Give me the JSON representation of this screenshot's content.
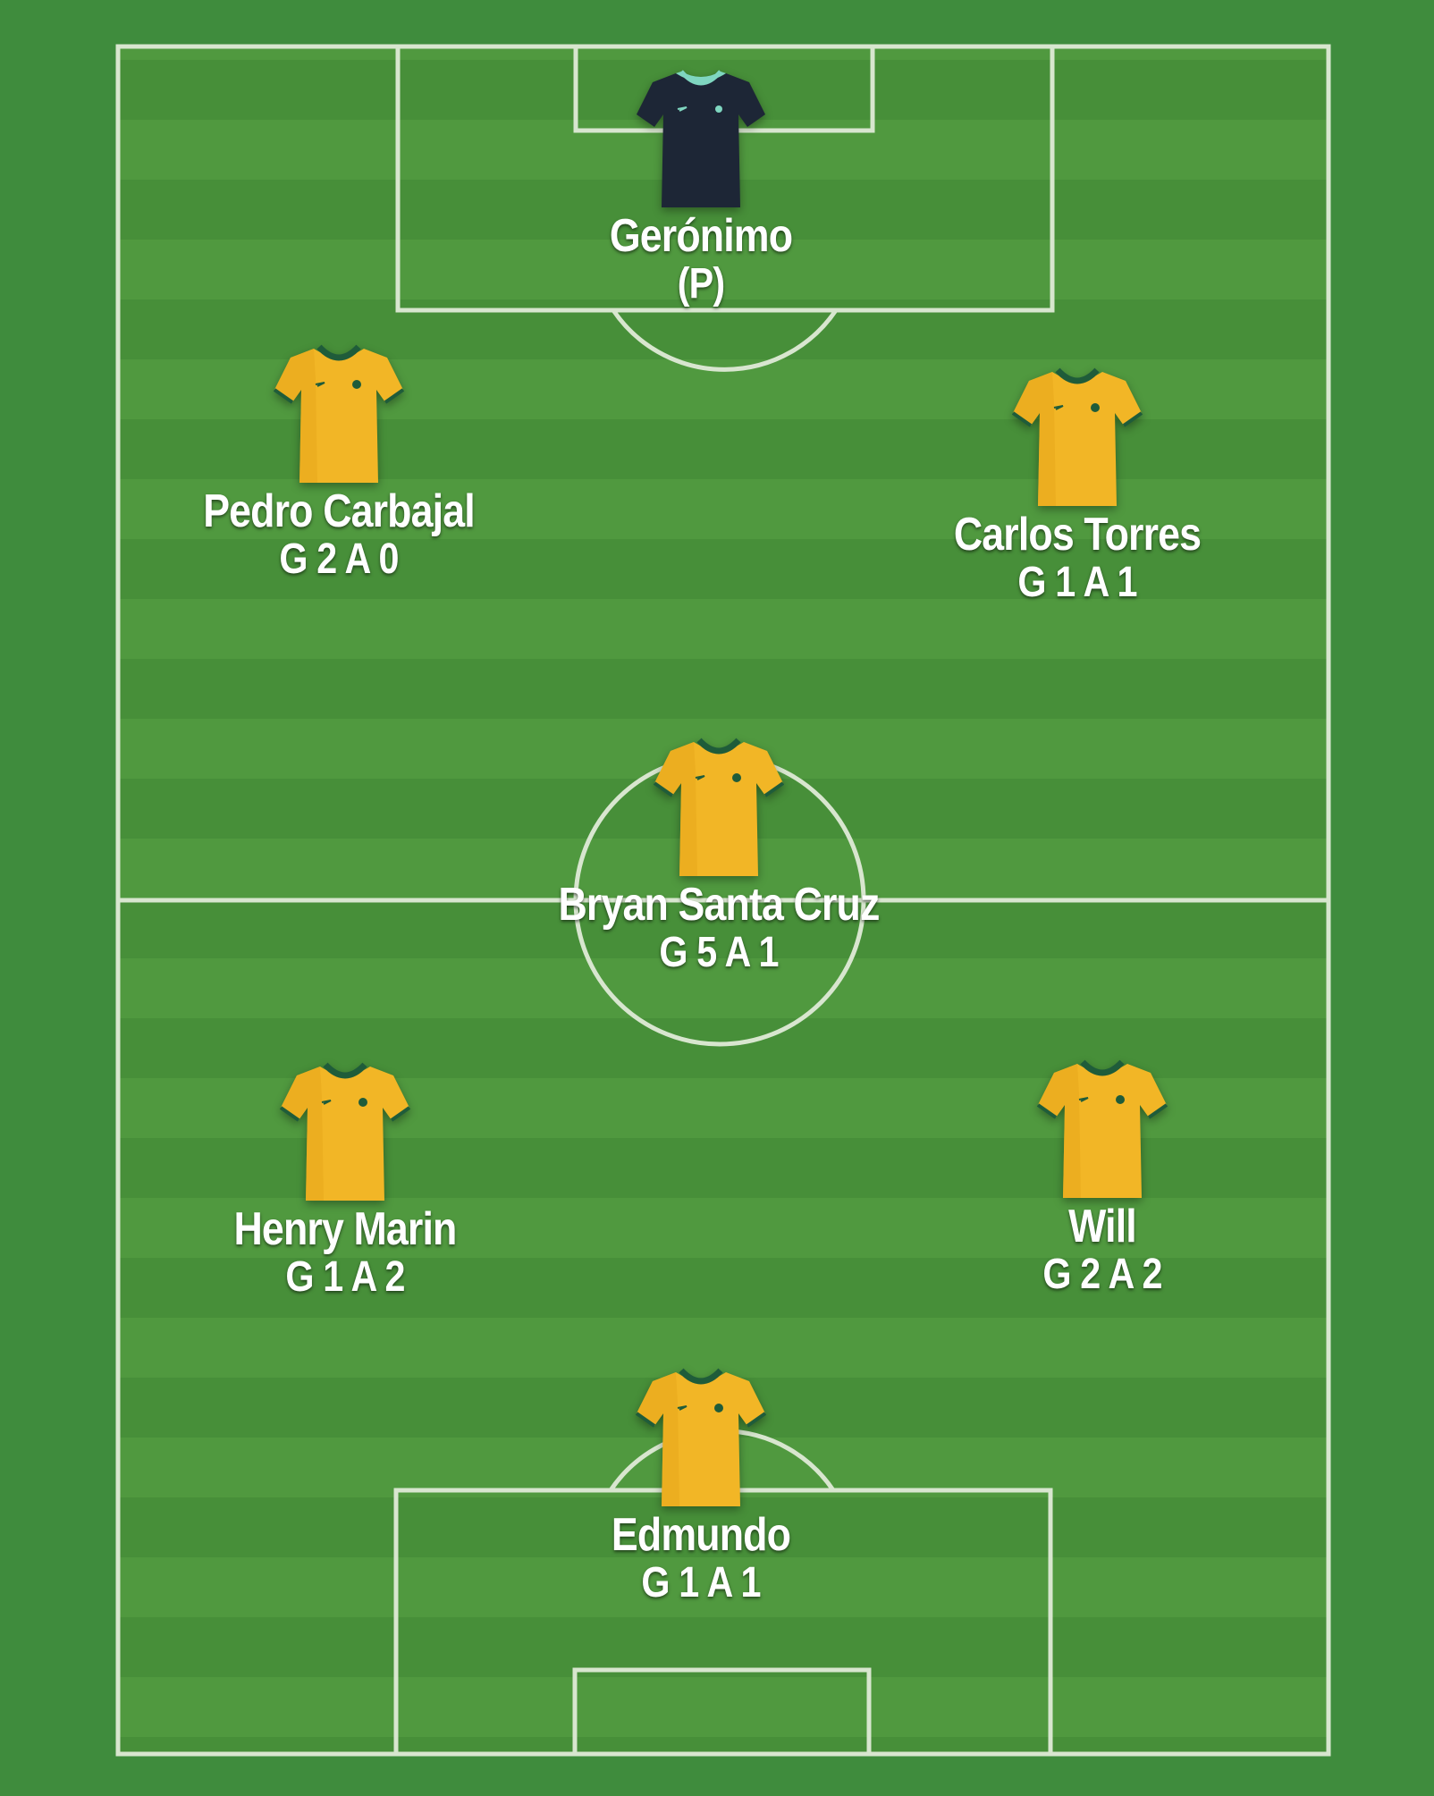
{
  "colors": {
    "background": "#3f8c3d",
    "pitch_light": "#4f9a43",
    "pitch_dark": "#468f3c",
    "lines": "#d9e8cf",
    "home_kit": "#f2b626",
    "home_trim": "#1f5c3a",
    "keeper_kit": "#1d2636",
    "keeper_trim": "#7fd6c0"
  },
  "players": [
    {
      "id": "geronimo",
      "name": "Gerónimo",
      "stats": "(P)",
      "kit": "goalkeeper-jersey-icon"
    },
    {
      "id": "pedro-carbajal",
      "name": "Pedro Carbajal",
      "stats": "G 2 A 0",
      "kit": "jersey-icon"
    },
    {
      "id": "carlos-torres",
      "name": "Carlos Torres",
      "stats": "G 1 A 1",
      "kit": "jersey-icon"
    },
    {
      "id": "bryan-santa-cruz",
      "name": "Bryan Santa Cruz",
      "stats": "G 5 A 1",
      "kit": "jersey-icon"
    },
    {
      "id": "henry-marin",
      "name": "Henry Marin",
      "stats": "G 1 A 2",
      "kit": "jersey-icon"
    },
    {
      "id": "will",
      "name": "Will",
      "stats": "G 2 A 2",
      "kit": "jersey-icon"
    },
    {
      "id": "edmundo",
      "name": "Edmundo",
      "stats": "G 1 A 1",
      "kit": "jersey-icon"
    }
  ]
}
